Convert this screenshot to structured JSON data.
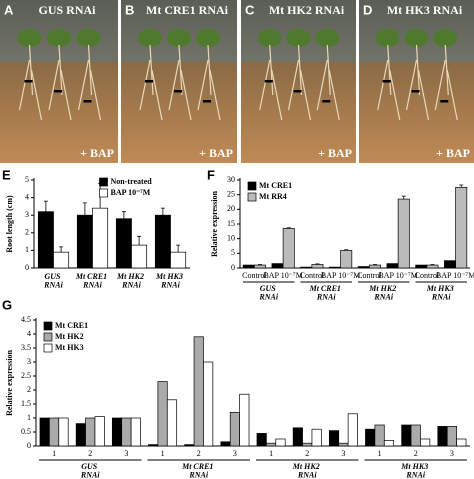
{
  "photos": [
    {
      "letter": "A",
      "title": "GUS RNAi",
      "treatment": "+ BAP"
    },
    {
      "letter": "B",
      "title": "Mt CRE1 RNAi",
      "treatment": "+ BAP"
    },
    {
      "letter": "C",
      "title": "Mt HK2 RNAi",
      "treatment": "+ BAP"
    },
    {
      "letter": "D",
      "title": "Mt HK3 RNAi",
      "treatment": "+ BAP"
    }
  ],
  "chart_data": [
    {
      "type": "bar",
      "panel": "E",
      "ylabel": "Root length (cm)",
      "categories": [
        "GUS RNAi",
        "Mt CRE1 RNAi",
        "Mt HK2 RNAi",
        "Mt HK3 RNAi"
      ],
      "series": [
        {
          "name": "Non-treated",
          "color": "#000000",
          "values": [
            3.2,
            3.0,
            2.8,
            3.0
          ],
          "errors": [
            0.6,
            0.7,
            0.4,
            0.4
          ]
        },
        {
          "name": "BAP 10⁻⁷M",
          "color": "#ffffff",
          "values": [
            0.9,
            3.4,
            1.3,
            0.9
          ],
          "errors": [
            0.3,
            1.4,
            0.5,
            0.4
          ]
        }
      ],
      "ylim": [
        0,
        5
      ],
      "yticks": [
        0,
        1,
        2,
        3,
        4,
        5
      ],
      "legend": "top-right"
    },
    {
      "type": "bar",
      "panel": "F",
      "ylabel": "Relative expression",
      "categories": [
        "Control",
        "BAP 10⁻⁷M",
        "Control",
        "BAP 10⁻⁷M",
        "Control",
        "BAP 10⁻⁷M",
        "Control",
        "BAP 10⁻⁷M"
      ],
      "group_labels": [
        "GUS RNAi",
        "Mt CRE1 RNAi",
        "Mt HK2 RNAi",
        "Mt HK3 RNAi"
      ],
      "series": [
        {
          "name": "Mt CRE1",
          "color": "#000000",
          "values": [
            1,
            1.5,
            0.3,
            0.3,
            0.5,
            1.5,
            1,
            2.5
          ]
        },
        {
          "name": "Mt RR4",
          "color": "#bbbbbb",
          "values": [
            1,
            13.5,
            1.2,
            6,
            1,
            23.5,
            1,
            27.5
          ],
          "errors": [
            0.2,
            0.2,
            0.2,
            0.2,
            0.2,
            1,
            0.2,
            0.8
          ]
        }
      ],
      "ylim": [
        0,
        30
      ],
      "yticks": [
        0,
        5,
        10,
        15,
        20,
        25,
        30
      ],
      "legend": "top-left"
    },
    {
      "type": "bar",
      "panel": "G",
      "ylabel": "Relative expression",
      "categories": [
        "1",
        "2",
        "3",
        "1",
        "2",
        "3",
        "1",
        "2",
        "3",
        "1",
        "2",
        "3"
      ],
      "group_labels": [
        "GUS RNAi",
        "Mt CRE1 RNAi",
        "Mt HK2 RNAi",
        "Mt HK3 RNAi"
      ],
      "series": [
        {
          "name": "Mt CRE1",
          "color": "#000000",
          "values": [
            1,
            0.8,
            1,
            0.05,
            0.05,
            0.15,
            0.45,
            0.65,
            0.55,
            0.6,
            0.75,
            0.7
          ]
        },
        {
          "name": "Mt HK2",
          "color": "#aaaaaa",
          "values": [
            1,
            1,
            1,
            2.3,
            3.9,
            1.2,
            0.1,
            0.1,
            0.1,
            0.75,
            0.75,
            0.7
          ]
        },
        {
          "name": "Mt HK3",
          "color": "#ffffff",
          "values": [
            1,
            1.05,
            1,
            1.65,
            3.0,
            1.85,
            0.25,
            0.6,
            1.15,
            0.2,
            0.25,
            0.25
          ]
        }
      ],
      "ylim": [
        0,
        4.5
      ],
      "yticks": [
        0,
        0.5,
        1,
        1.5,
        2,
        2.5,
        3,
        3.5,
        4,
        4.5
      ],
      "legend": "top-left"
    }
  ]
}
